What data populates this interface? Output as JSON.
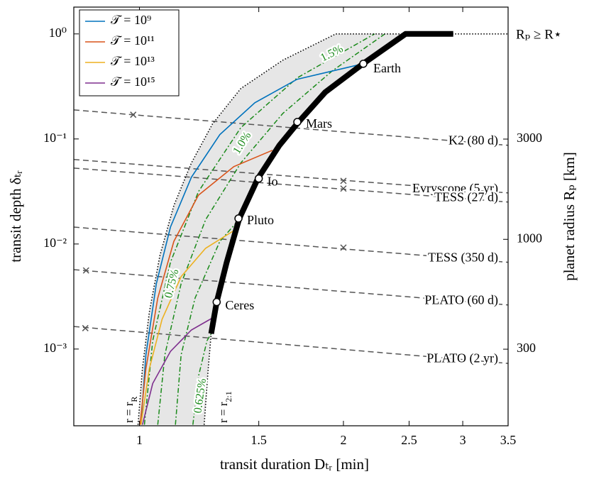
{
  "chart_data": {
    "type": "line",
    "xlabel": "transit duration Dₜᵣ [min]",
    "ylabel": "transit depth δₜᵣ",
    "y2label": "planet radius Rₚ [km]",
    "xscale": "log",
    "yscale": "log",
    "y2scale": "log",
    "xlim": [
      0.8,
      3.5
    ],
    "ylim": [
      0.000186,
      1.8
    ],
    "y2lim": [
      129.6,
      12746
    ],
    "xticks": [
      1,
      1.5,
      2,
      2.5,
      3,
      3.5
    ],
    "yticks": [
      {
        "value": 0.001,
        "label": "10⁻³"
      },
      {
        "value": 0.01,
        "label": "10⁻²"
      },
      {
        "value": 0.1,
        "label": "10⁻¹"
      },
      {
        "value": 1,
        "label": "10⁰"
      }
    ],
    "y2ticks": [
      300,
      1000,
      3000
    ],
    "legend": "upper left",
    "top_label": "Rₚ ≥ R⋆",
    "series": [
      {
        "name": "𝒯 = 10⁹",
        "color": "#0072bd",
        "x": [
          1.005,
          1.022,
          1.059,
          1.111,
          1.193,
          1.314,
          1.48,
          1.709,
          2.14
        ],
        "values": [
          0.00019,
          0.00088,
          0.00419,
          0.0145,
          0.0432,
          0.11,
          0.221,
          0.37,
          0.52
        ]
      },
      {
        "name": "𝒯 = 10¹¹",
        "color": "#d95319",
        "x": [
          1.002,
          1.022,
          1.064,
          1.124,
          1.222,
          1.378,
          1.571
        ],
        "values": [
          0.00019,
          0.00065,
          0.00306,
          0.0106,
          0.0292,
          0.0545,
          0.078
        ]
      },
      {
        "name": "𝒯 = 10¹³",
        "color": "#edb120",
        "x": [
          1.005,
          1.034,
          1.08,
          1.152,
          1.252,
          1.378
        ],
        "values": [
          0.00019,
          0.00065,
          0.00192,
          0.00489,
          0.0091,
          0.0134
        ]
      },
      {
        "name": "𝒯 = 10¹⁵",
        "color": "#7e2f8e",
        "x": [
          1.01,
          1.046,
          1.111,
          1.193,
          1.282
        ],
        "values": [
          0.00019,
          0.00047,
          0.00095,
          0.00152,
          0.00198
        ]
      }
    ],
    "boundaries": [
      {
        "label": {
          "text": "r = r",
          "sub": "R"
        },
        "x": [
          0.995,
          1.01,
          1.034,
          1.072,
          1.124,
          1.193,
          1.282,
          1.411,
          1.628,
          1.949,
          3.5
        ],
        "values": [
          0.00019,
          0.00065,
          0.00224,
          0.0078,
          0.0232,
          0.059,
          0.139,
          0.302,
          0.562,
          1,
          1
        ]
      },
      {
        "label": {
          "text": "r = r",
          "sub": "2:1"
        },
        "x": [
          1.246,
          1.262,
          1.276
        ],
        "values": [
          0.00019,
          0.0006,
          0.0014
        ]
      }
    ],
    "sequence": {
      "color": "#000000",
      "x": [
        1.276,
        1.3,
        1.345,
        1.404,
        1.495,
        1.609,
        1.717,
        1.88,
        2.138,
        2.47,
        2.905
      ],
      "values": [
        0.0014,
        0.00279,
        0.00667,
        0.0175,
        0.0419,
        0.0869,
        0.145,
        0.279,
        0.52,
        1,
        1
      ]
    },
    "efficiency": [
      {
        "label": "1.5%",
        "color": "#1a8a1a",
        "x": [
          1.017,
          1.046,
          1.111,
          1.222,
          1.411,
          1.709,
          2.223
        ],
        "values": [
          0.00019,
          0.0012,
          0.0067,
          0.0316,
          0.128,
          0.381,
          1
        ]
      },
      {
        "label": "1.0%",
        "color": "#1a8a1a",
        "x": [
          1.064,
          1.09,
          1.152,
          1.252,
          1.411,
          1.628,
          1.926,
          2.303
        ],
        "values": [
          0.00019,
          0.00088,
          0.00419,
          0.017,
          0.059,
          0.175,
          0.445,
          1
        ]
      },
      {
        "label": "0.75%",
        "color": "#1a8a1a",
        "x": [
          1.13,
          1.152,
          1.208,
          1.314,
          1.39
        ],
        "values": [
          0.00019,
          0.00088,
          0.00306,
          0.0106,
          0.016
        ]
      },
      {
        "label": "0.625%",
        "color": "#1a8a1a",
        "x": [
          1.199,
          1.222,
          1.258,
          1.276
        ],
        "values": [
          0.00019,
          0.00055,
          0.0012,
          0.0014
        ]
      }
    ],
    "surveys": [
      {
        "label": "K2 (80 d)",
        "x": [
          0.8,
          3.5
        ],
        "values": [
          0.189,
          0.087
        ],
        "marker": {
          "x": 0.979,
          "y": 0.17
        }
      },
      {
        "label": "Evryscope (5 yr)",
        "x": [
          0.8,
          3.5
        ],
        "values": [
          0.0637,
          0.0306
        ],
        "marker": {
          "x": 2,
          "y": 0.0399
        }
      },
      {
        "label": "TESS (27 d)",
        "x": [
          0.8,
          3.5
        ],
        "values": [
          0.0528,
          0.0251
        ],
        "marker": {
          "x": 2,
          "y": 0.0337
        }
      },
      {
        "label": "TESS (350 d)",
        "x": [
          0.8,
          3.5
        ],
        "values": [
          0.0145,
          0.0067
        ],
        "marker": {
          "x": 2,
          "y": 0.00925
        }
      },
      {
        "label": "PLATO (60 d)",
        "x": [
          0.8,
          3.5
        ],
        "values": [
          0.0057,
          0.00263
        ],
        "marker": {
          "x": 0.834,
          "y": 0.0056
        }
      },
      {
        "label": "PLATO (2 yr)",
        "x": [
          0.8,
          3.5
        ],
        "values": [
          0.00164,
          0.00073
        ],
        "marker": {
          "x": 0.832,
          "y": 0.00158
        }
      }
    ],
    "planets": {
      "names": [
        "Earth",
        "Mars",
        "Io",
        "Pluto",
        "Ceres"
      ],
      "x": [
        2.14,
        1.71,
        1.5,
        1.4,
        1.3
      ],
      "values": [
        0.52,
        0.145,
        0.042,
        0.0175,
        0.0028
      ]
    }
  }
}
